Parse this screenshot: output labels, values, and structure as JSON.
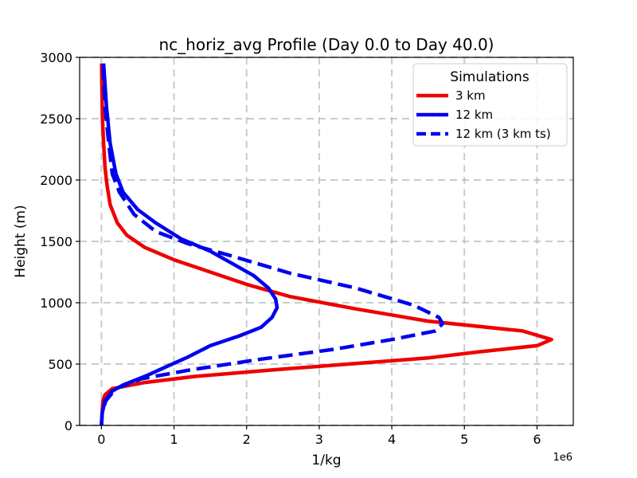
{
  "chart_data": {
    "type": "line",
    "title": "nc_horiz_avg Profile (Day 0.0 to Day 40.0)",
    "xlabel": "1/kg",
    "ylabel": "Height (m)",
    "x_offset_label": "1e6",
    "x_scale": 1000000,
    "xlim": [
      -300000,
      6500000
    ],
    "ylim": [
      0,
      3000
    ],
    "x_ticks": [
      0,
      1000000,
      2000000,
      3000000,
      4000000,
      5000000,
      6000000
    ],
    "x_tick_labels": [
      "0",
      "1",
      "2",
      "3",
      "4",
      "5",
      "6"
    ],
    "y_ticks": [
      0,
      500,
      1000,
      1500,
      2000,
      2500,
      3000
    ],
    "y_tick_labels": [
      "0",
      "500",
      "1000",
      "1500",
      "2000",
      "2500",
      "3000"
    ],
    "grid": true,
    "legend": {
      "title": "Simulations",
      "placement": "top-right"
    },
    "series": [
      {
        "name": "3 km",
        "color": "#ee0000",
        "dash": "solid",
        "points": [
          [
            0,
            0
          ],
          [
            10000,
            100
          ],
          [
            20000,
            200
          ],
          [
            50000,
            250
          ],
          [
            150000,
            300
          ],
          [
            600000,
            350
          ],
          [
            1300000,
            400
          ],
          [
            2300000,
            450
          ],
          [
            3400000,
            500
          ],
          [
            4500000,
            550
          ],
          [
            5200000,
            600
          ],
          [
            6000000,
            650
          ],
          [
            6200000,
            700
          ],
          [
            5800000,
            770
          ],
          [
            4500000,
            850
          ],
          [
            3500000,
            950
          ],
          [
            2600000,
            1050
          ],
          [
            2000000,
            1150
          ],
          [
            1500000,
            1250
          ],
          [
            1000000,
            1350
          ],
          [
            600000,
            1450
          ],
          [
            350000,
            1550
          ],
          [
            220000,
            1650
          ],
          [
            120000,
            1800
          ],
          [
            80000,
            1950
          ],
          [
            50000,
            2100
          ],
          [
            30000,
            2300
          ],
          [
            15000,
            2500
          ],
          [
            8000,
            2700
          ],
          [
            3000,
            2950
          ]
        ]
      },
      {
        "name": "12 km",
        "color": "#0000ee",
        "dash": "solid",
        "points": [
          [
            0,
            0
          ],
          [
            10000,
            100
          ],
          [
            50000,
            200
          ],
          [
            150000,
            280
          ],
          [
            300000,
            330
          ],
          [
            600000,
            400
          ],
          [
            900000,
            480
          ],
          [
            1200000,
            560
          ],
          [
            1500000,
            650
          ],
          [
            1900000,
            730
          ],
          [
            2200000,
            800
          ],
          [
            2350000,
            880
          ],
          [
            2420000,
            960
          ],
          [
            2400000,
            1030
          ],
          [
            2300000,
            1120
          ],
          [
            2100000,
            1220
          ],
          [
            1800000,
            1320
          ],
          [
            1500000,
            1420
          ],
          [
            1100000,
            1520
          ],
          [
            750000,
            1650
          ],
          [
            500000,
            1760
          ],
          [
            300000,
            1900
          ],
          [
            200000,
            2050
          ],
          [
            120000,
            2300
          ],
          [
            70000,
            2600
          ],
          [
            30000,
            2950
          ]
        ]
      },
      {
        "name": "12 km (3 km ts)",
        "color": "#0000ee",
        "dash": "dashed",
        "points": [
          [
            0,
            0
          ],
          [
            10000,
            100
          ],
          [
            60000,
            200
          ],
          [
            200000,
            300
          ],
          [
            550000,
            380
          ],
          [
            1200000,
            450
          ],
          [
            2200000,
            540
          ],
          [
            3200000,
            620
          ],
          [
            4000000,
            700
          ],
          [
            4600000,
            770
          ],
          [
            4700000,
            830
          ],
          [
            4650000,
            880
          ],
          [
            4300000,
            980
          ],
          [
            3500000,
            1120
          ],
          [
            2600000,
            1240
          ],
          [
            1800000,
            1380
          ],
          [
            1200000,
            1480
          ],
          [
            750000,
            1580
          ],
          [
            450000,
            1720
          ],
          [
            250000,
            1900
          ],
          [
            150000,
            2050
          ],
          [
            100000,
            2300
          ],
          [
            50000,
            2600
          ],
          [
            20000,
            2950
          ]
        ]
      }
    ]
  }
}
